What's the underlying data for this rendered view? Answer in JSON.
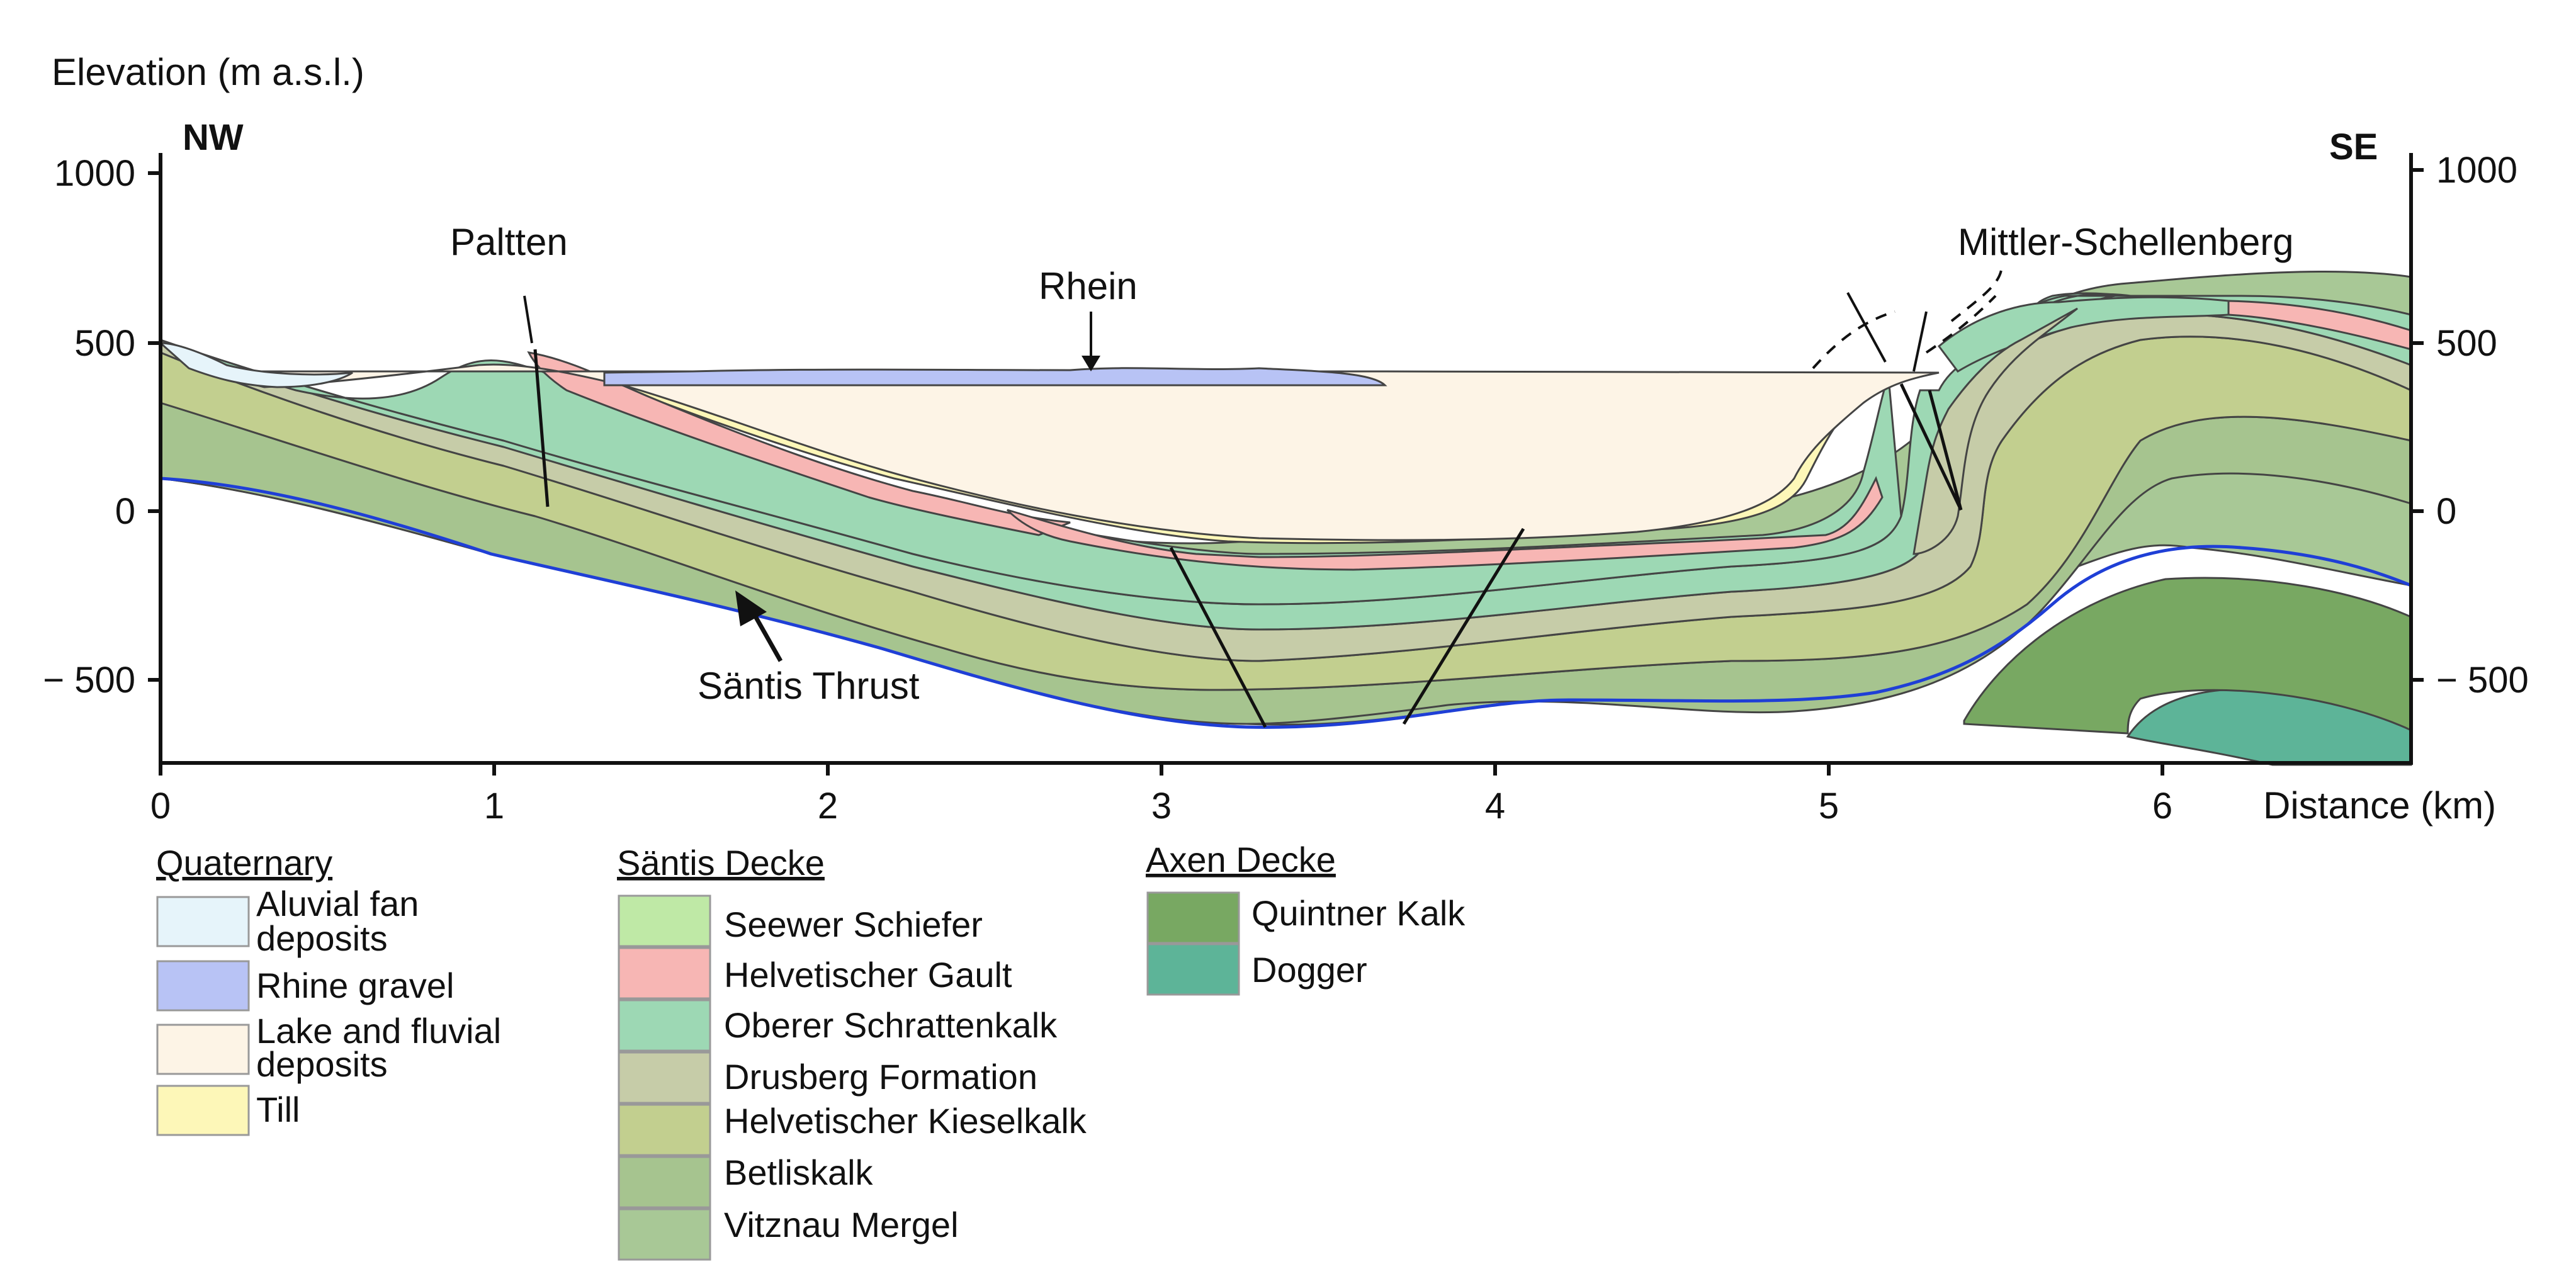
{
  "y_axis_label": "Elevation (m a.s.l.)",
  "x_axis_label": "Distance (km)",
  "directions": {
    "left": "NW",
    "right": "SE"
  },
  "y_ticks": [
    "1000",
    "500",
    "0",
    "− 500"
  ],
  "x_ticks": [
    "0",
    "1",
    "2",
    "3",
    "4",
    "5",
    "6"
  ],
  "annotations": {
    "paltten": "Paltten",
    "rhein": "Rhein",
    "mittler": "Mittler-Schellenberg",
    "thrust": "Säntis Thrust"
  },
  "legend": {
    "quaternary": {
      "heading": "Quaternary",
      "items": [
        {
          "lines": [
            "Aluvial fan",
            "deposits"
          ],
          "color": "#e6f4fa"
        },
        {
          "lines": [
            "Rhine gravel"
          ],
          "color": "#b8c3f5"
        },
        {
          "lines": [
            "Lake and fluvial",
            "deposits"
          ],
          "color": "#fdf4e6"
        },
        {
          "lines": [
            "Till"
          ],
          "color": "#fdf7b8"
        }
      ]
    },
    "santis": {
      "heading": "Säntis Decke",
      "items": [
        {
          "lines": [
            "Seewer Schiefer"
          ],
          "color": "#bfe9a6"
        },
        {
          "lines": [
            "Helvetischer Gault"
          ],
          "color": "#f7b6b4"
        },
        {
          "lines": [
            "Oberer Schrattenkalk"
          ],
          "color": "#9dd8b4"
        },
        {
          "lines": [
            "Drusberg Formation"
          ],
          "color": "#c6cca8"
        },
        {
          "lines": [
            "Helvetischer Kieselkalk"
          ],
          "color": "#c2cf8f"
        },
        {
          "lines": [
            "Betliskalk"
          ],
          "color": "#a6c48f"
        },
        {
          "lines": [
            "Vitznau Mergel"
          ],
          "color": "#a8c896"
        }
      ]
    },
    "axen": {
      "heading": "Axen Decke",
      "items": [
        {
          "lines": [
            "Quintner Kalk"
          ],
          "color": "#78a862"
        },
        {
          "lines": [
            "Dogger"
          ],
          "color": "#5db498"
        }
      ]
    }
  }
}
